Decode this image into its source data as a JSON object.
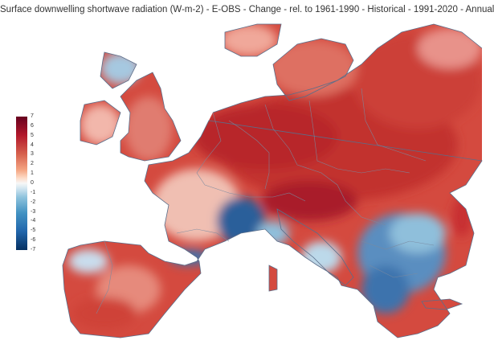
{
  "title": "Surface downwelling shortwave radiation (W-m-2) - E-OBS - Change - rel. to 1961-1990 - Historical - 1991-2020 - Annual",
  "legend": {
    "ticks": [
      "7",
      "6",
      "5",
      "4",
      "3",
      "2",
      "1",
      "0",
      "-1",
      "-2",
      "-3",
      "-4",
      "-5",
      "-6",
      "-7"
    ],
    "colors": [
      "#67001f",
      "#b2182b",
      "#d6604d",
      "#f4a582",
      "#fddbc7",
      "#f7f7f7",
      "#d1e5f0",
      "#92c5de",
      "#4393c3",
      "#2166ac",
      "#053061"
    ]
  },
  "map_colors": {
    "sea": "#ffffff",
    "border": "#7a8aa0",
    "coast": "#5a6e8a"
  }
}
